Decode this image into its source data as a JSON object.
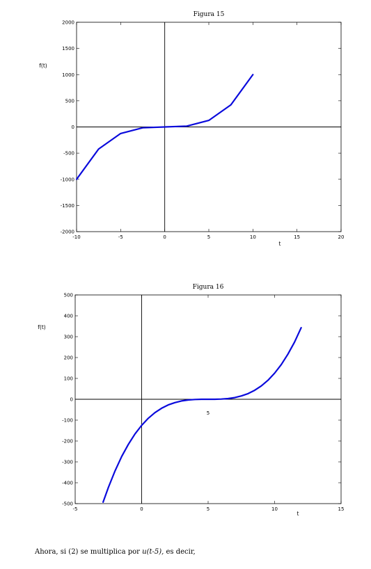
{
  "chart_data": [
    {
      "type": "line",
      "title": "Figura  15",
      "ylabel": "f(t)",
      "xlabel": "t",
      "xlim": [
        -10,
        20
      ],
      "ylim": [
        -2000,
        2000
      ],
      "x_ticks": [
        -10,
        -5,
        0,
        5,
        10,
        15,
        20
      ],
      "y_ticks": [
        -2000,
        -1500,
        -1000,
        -500,
        0,
        500,
        1000,
        1500,
        2000
      ],
      "color": "#0a0adc",
      "series": [
        {
          "x": [
            -10,
            -7.5,
            -5,
            -2.5,
            0,
            2.5,
            5,
            7.5,
            10
          ],
          "y": [
            -1000,
            -422,
            -125,
            -16,
            0,
            16,
            125,
            422,
            1000
          ]
        }
      ]
    },
    {
      "type": "line",
      "title": "Figura  16",
      "ylabel": "f(t)",
      "xlabel": "t",
      "annotation": "5",
      "xlim": [
        -5,
        15
      ],
      "ylim": [
        -500,
        500
      ],
      "x_ticks": [
        -5,
        0,
        5,
        10,
        15
      ],
      "y_ticks": [
        -500,
        -400,
        -300,
        -200,
        -100,
        0,
        100,
        200,
        300,
        400,
        500
      ],
      "color": "#0a0adc",
      "series": [
        {
          "x": [
            -2.9,
            -2.5,
            -2,
            -1.5,
            -1,
            -0.5,
            0,
            0.5,
            1,
            1.5,
            2,
            2.5,
            3,
            3.5,
            4,
            4.5,
            5,
            5.5,
            6,
            6.5,
            7,
            7.5,
            8,
            8.5,
            9,
            9.5,
            10,
            10.5,
            11,
            11.5,
            12
          ],
          "y": [
            -493,
            -422,
            -343,
            -274,
            -216,
            -166,
            -125,
            -91,
            -64,
            -43,
            -27,
            -16,
            -8,
            -3.4,
            -1,
            -0.1,
            0,
            0.1,
            1,
            3.4,
            8,
            16,
            27,
            43,
            64,
            91,
            125,
            166,
            216,
            274,
            343
          ]
        }
      ]
    }
  ],
  "text": {
    "p1_before": "Ahora, si (2) se multiplica por ",
    "p1_italic": "u(t-5),",
    "p1_after": " es decir,"
  }
}
